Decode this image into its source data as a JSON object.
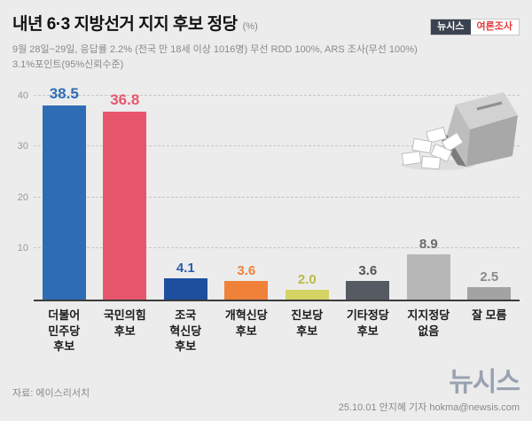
{
  "header": {
    "title": "내년 6·3 지방선거 지지 후보 정당",
    "unit": "(%)",
    "badge_brand": "뉴시스",
    "badge_label": "여론조사"
  },
  "subtitle": {
    "line1": "9월 28일~29일, 응답률 2.2% (전국 만 18세 이상 1016명) 무선 RDD 100%, ARS 조사(무선 100%)",
    "line2": "3.1%포인트(95%신뢰수준)"
  },
  "chart_data": {
    "type": "bar",
    "title": "내년 6·3 지방선거 지지 후보 정당",
    "unit": "%",
    "categories": [
      [
        "더불어",
        "민주당",
        "후보"
      ],
      [
        "국민의힘",
        "후보"
      ],
      [
        "조국",
        "혁신당",
        "후보"
      ],
      [
        "개혁신당",
        "후보"
      ],
      [
        "진보당",
        "후보"
      ],
      [
        "기타정당",
        "후보"
      ],
      [
        "지지정당",
        "없음"
      ],
      [
        "잘 모름"
      ]
    ],
    "values": [
      38.5,
      36.8,
      4.1,
      3.6,
      2.0,
      3.6,
      8.9,
      2.5
    ],
    "bar_colors": [
      "#2e6db4",
      "#e8566d",
      "#1d4f9e",
      "#ef8139",
      "#d3d464",
      "#565b63",
      "#b7b7b7",
      "#a3a3a3"
    ],
    "label_colors": [
      "#2e6db4",
      "#e8566d",
      "#2a5caa",
      "#ef8139",
      "#b9bb44",
      "#555555",
      "#6a6a6a",
      "#8b8b8b"
    ],
    "ylim": [
      0,
      42
    ],
    "yticks": [
      10,
      20,
      30,
      40
    ],
    "grid": "dashed horizontal",
    "legend": "none"
  },
  "footer": {
    "source": "자료: 에이스리서치",
    "logo": "뉴시스",
    "credit": "25.10.01 안지혜 기자 hokma@newsis.com"
  }
}
